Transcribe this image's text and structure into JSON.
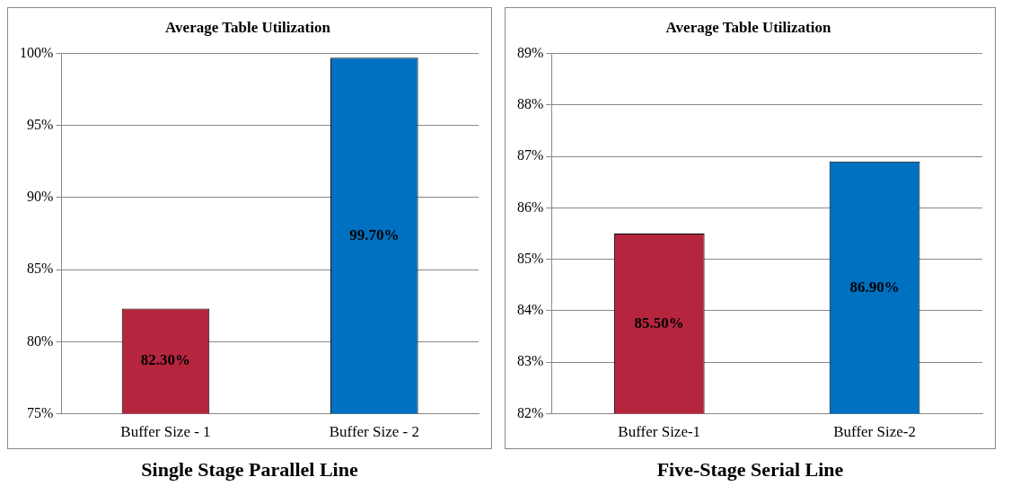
{
  "chart_data": [
    {
      "type": "bar",
      "title": "Average Table Utilization",
      "categories": [
        "Buffer Size - 1",
        "Buffer Size - 2"
      ],
      "values": [
        82.3,
        99.7
      ],
      "colors": [
        "#b5263e",
        "#0070c0"
      ],
      "value_labels": [
        "82.30%",
        "99.70%"
      ],
      "ylim": [
        75,
        100
      ],
      "yticks": [
        {
          "value": 75,
          "label": "75%"
        },
        {
          "value": 80,
          "label": "80%"
        },
        {
          "value": 85,
          "label": "85%"
        },
        {
          "value": 90,
          "label": "90%"
        },
        {
          "value": 95,
          "label": "95%"
        },
        {
          "value": 100,
          "label": "100%"
        }
      ],
      "grid": "y",
      "legend": false,
      "annotations": [
        "Single Stage Parallel Line"
      ]
    },
    {
      "type": "bar",
      "title": "Average Table Utilization",
      "categories": [
        "Buffer Size-1",
        "Buffer Size-2"
      ],
      "values": [
        85.5,
        86.9
      ],
      "colors": [
        "#b5263e",
        "#0070c0"
      ],
      "value_labels": [
        "85.50%",
        "86.90%"
      ],
      "ylim": [
        82,
        89
      ],
      "yticks": [
        {
          "value": 82,
          "label": "82%"
        },
        {
          "value": 83,
          "label": "83%"
        },
        {
          "value": 84,
          "label": "84%"
        },
        {
          "value": 85,
          "label": "85%"
        },
        {
          "value": 86,
          "label": "86%"
        },
        {
          "value": 87,
          "label": "87%"
        },
        {
          "value": 88,
          "label": "88%"
        },
        {
          "value": 89,
          "label": "89%"
        }
      ],
      "grid": "y",
      "legend": false,
      "annotations": [
        "Five-Stage Serial Line"
      ]
    }
  ]
}
